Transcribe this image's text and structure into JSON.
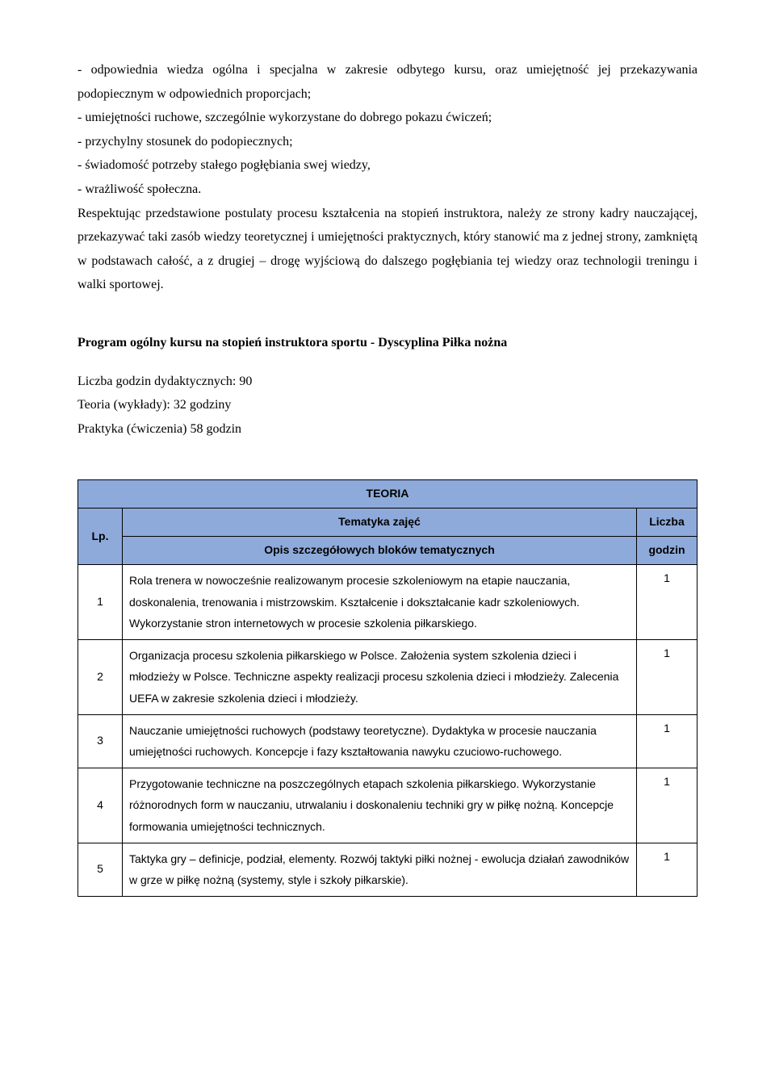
{
  "bullets": {
    "b1": "- odpowiednia wiedza ogólna i specjalna w zakresie odbytego kursu, oraz umiejętność  jej przekazywania podopiecznym w odpowiednich proporcjach;",
    "b2": "- umiejętności ruchowe, szczególnie wykorzystane do dobrego pokazu ćwiczeń;",
    "b3": "- przychylny stosunek do podopiecznych;",
    "b4": "- świadomość potrzeby stałego pogłębiania swej wiedzy,",
    "b5": "- wrażliwość społeczna."
  },
  "body": "Respektując przedstawione postulaty procesu kształcenia na stopień instruktora, należy ze strony kadry nauczającej, przekazywać taki zasób wiedzy teoretycznej i umiejętności praktycznych, który stanowić ma z jednej strony, zamkniętą w podstawach całość, a z drugiej – drogę wyjściową do dalszego pogłębiania tej wiedzy oraz technologii treningu i walki sportowej.",
  "section_title": "Program ogólny kursu na stopień instruktora sportu - Dyscyplina Piłka nożna",
  "meta": {
    "m1": "Liczba godzin dydaktycznych: 90",
    "m2": "Teoria (wykłady): 32 godziny",
    "m3": "Praktyka (ćwiczenia) 58 godzin"
  },
  "table": {
    "header_bg": "#8eaadb",
    "title": "TEORIA",
    "col_lp": "Lp.",
    "col_topic_line1": "Tematyka zajęć",
    "col_topic_line2": "Opis szczegółowych bloków tematycznych",
    "col_hours_line1": "Liczba",
    "col_hours_line2": "godzin",
    "rows": [
      {
        "lp": "1",
        "desc": "Rola trenera w nowocześnie realizowanym procesie szkoleniowym na etapie nauczania, doskonalenia,  trenowania i mistrzowskim. Kształcenie i dokształcanie kadr szkoleniowych. Wykorzystanie stron internetowych w procesie szkolenia piłkarskiego.",
        "hours": "1"
      },
      {
        "lp": "2",
        "desc": "Organizacja procesu szkolenia piłkarskiego w Polsce. Założenia system szkolenia dzieci i młodzieży w Polsce. Techniczne aspekty realizacji procesu szkolenia dzieci i młodzieży. Zalecenia UEFA w zakresie szkolenia dzieci i młodzieży.",
        "hours": "1"
      },
      {
        "lp": "3",
        "desc": "Nauczanie umiejętności ruchowych (podstawy teoretyczne). Dydaktyka w procesie nauczania umiejętności ruchowych. Koncepcje i fazy kształtowania nawyku czuciowo-ruchowego.",
        "hours": "1"
      },
      {
        "lp": "4",
        "desc": "Przygotowanie techniczne na poszczególnych etapach szkolenia piłkarskiego. Wykorzystanie różnorodnych form w nauczaniu, utrwalaniu i doskonaleniu techniki  gry w piłkę nożną. Koncepcje formowania umiejętności technicznych.",
        "hours": "1"
      },
      {
        "lp": "5",
        "desc": "Taktyka gry – definicje, podział, elementy. Rozwój taktyki piłki nożnej - ewolucja działań zawodników w grze w piłkę nożną (systemy, style i szkoły piłkarskie).",
        "hours": "1"
      }
    ]
  }
}
